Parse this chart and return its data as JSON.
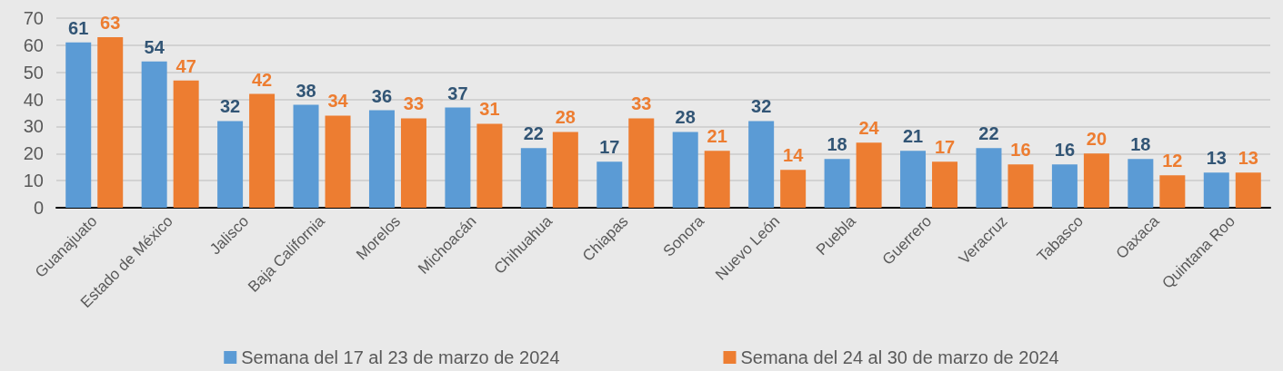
{
  "chart_data": {
    "type": "bar",
    "categories": [
      "Guanajuato",
      "Estado de México",
      "Jalisco",
      "Baja California",
      "Morelos",
      "Michoacán",
      "Chihuahua",
      "Chiapas",
      "Sonora",
      "Nuevo León",
      "Puebla",
      "Guerrero",
      "Veracruz",
      "Tabasco",
      "Oaxaca",
      "Quintana Roo"
    ],
    "series": [
      {
        "name": "Semana del 17 al 23 de marzo de 2024",
        "color": "#5b9bd5",
        "values": [
          61,
          54,
          32,
          38,
          36,
          37,
          22,
          17,
          28,
          32,
          18,
          21,
          22,
          16,
          18,
          13
        ]
      },
      {
        "name": "Semana del 24 al 30 de marzo de 2024",
        "color": "#ed7d31",
        "values": [
          63,
          47,
          42,
          34,
          33,
          31,
          28,
          33,
          21,
          14,
          24,
          17,
          16,
          20,
          12,
          13
        ]
      }
    ],
    "ylim": [
      0,
      70
    ],
    "yticks": [
      0,
      10,
      20,
      30,
      40,
      50,
      60,
      70
    ],
    "grid": "y",
    "legend": "bottom",
    "data_labels": true
  }
}
